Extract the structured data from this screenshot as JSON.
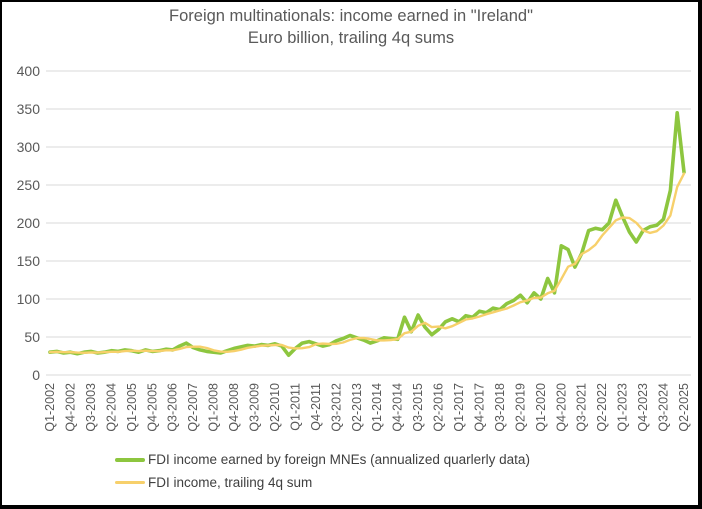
{
  "chart": {
    "title_line1": "Foreign multinationals: income earned in \"Ireland\"",
    "title_line2": "Euro billion, trailing 4q sums"
  },
  "colors": {
    "series_green": "#8dc63f",
    "series_gold": "#f7d06b",
    "gridline": "#d9d9d9",
    "axis_text": "#595959",
    "title_text": "#595959"
  },
  "chart_data": {
    "type": "line",
    "title": "Foreign multinationals: income earned in \"Ireland\"",
    "subtitle": "Euro billion, trailing 4q sums",
    "xlabel": "",
    "ylabel": "",
    "ylim": [
      0,
      400
    ],
    "ytick_step": 50,
    "yticks": [
      0,
      50,
      100,
      150,
      200,
      250,
      300,
      350,
      400
    ],
    "xtick_every": 3,
    "grid": true,
    "legend_position": "bottom-left",
    "categories": [
      "Q1-2002",
      "Q2-2002",
      "Q3-2002",
      "Q4-2002",
      "Q1-2003",
      "Q2-2003",
      "Q3-2003",
      "Q4-2003",
      "Q1-2004",
      "Q2-2004",
      "Q3-2004",
      "Q4-2004",
      "Q1-2005",
      "Q2-2005",
      "Q3-2005",
      "Q4-2005",
      "Q1-2006",
      "Q2-2006",
      "Q3-2006",
      "Q4-2006",
      "Q1-2007",
      "Q2-2007",
      "Q3-2007",
      "Q4-2007",
      "Q1-2008",
      "Q2-2008",
      "Q3-2008",
      "Q4-2008",
      "Q1-2009",
      "Q2-2009",
      "Q3-2009",
      "Q4-2009",
      "Q1-2010",
      "Q2-2010",
      "Q3-2010",
      "Q4-2010",
      "Q1-2011",
      "Q2-2011",
      "Q3-2011",
      "Q4-2011",
      "Q1-2012",
      "Q2-2012",
      "Q3-2012",
      "Q4-2012",
      "Q1-2013",
      "Q2-2013",
      "Q3-2013",
      "Q4-2013",
      "Q1-2014",
      "Q2-2014",
      "Q3-2014",
      "Q4-2014",
      "Q1-2015",
      "Q2-2015",
      "Q3-2015",
      "Q4-2015",
      "Q1-2016",
      "Q2-2016",
      "Q3-2016",
      "Q4-2016",
      "Q1-2017",
      "Q2-2017",
      "Q3-2017",
      "Q4-2017",
      "Q1-2018",
      "Q2-2018",
      "Q3-2018",
      "Q4-2018",
      "Q1-2019",
      "Q2-2019",
      "Q3-2019",
      "Q4-2019",
      "Q1-2020",
      "Q2-2020",
      "Q3-2020",
      "Q4-2020",
      "Q1-2021",
      "Q2-2021",
      "Q3-2021",
      "Q4-2021",
      "Q1-2022",
      "Q2-2022",
      "Q3-2022",
      "Q4-2022",
      "Q1-2023",
      "Q2-2023",
      "Q3-2023",
      "Q4-2023",
      "Q1-2024",
      "Q2-2024",
      "Q3-2024",
      "Q4-2024",
      "Q1-2025",
      "Q2-2025"
    ],
    "series": [
      {
        "name": "FDI income earned by foreign MNEs (annualized quarlerly data)",
        "color": "#8dc63f",
        "stroke_width": 3.6,
        "values": [
          30,
          31,
          29,
          30,
          28,
          30,
          31,
          29,
          30,
          32,
          31,
          33,
          32,
          30,
          33,
          31,
          32,
          34,
          33,
          38,
          42,
          36,
          33,
          31,
          30,
          29,
          32,
          35,
          37,
          39,
          38,
          40,
          39,
          41,
          38,
          26,
          35,
          42,
          44,
          41,
          38,
          40,
          45,
          48,
          52,
          49,
          46,
          42,
          45,
          49,
          48,
          47,
          76,
          57,
          79,
          63,
          53,
          60,
          70,
          74,
          70,
          78,
          76,
          84,
          82,
          88,
          86,
          94,
          98,
          105,
          95,
          108,
          100,
          127,
          108,
          170,
          165,
          142,
          160,
          190,
          193,
          191,
          200,
          230,
          208,
          188,
          175,
          190,
          195,
          197,
          205,
          243,
          345,
          267
        ]
      },
      {
        "name": "FDI income, trailing 4q sum",
        "color": "#f7d06b",
        "stroke_width": 2.4,
        "values": [
          30,
          30.5,
          30,
          30,
          29.5,
          29.25,
          29.75,
          29.5,
          30,
          30.5,
          30.5,
          31.5,
          32,
          31.5,
          32,
          31.5,
          31.5,
          32.5,
          32.5,
          34.25,
          36.75,
          37.25,
          37.25,
          35.5,
          32.5,
          30.75,
          30.5,
          31.5,
          33.25,
          35.75,
          37.25,
          38.5,
          39,
          39.5,
          39.5,
          36,
          35,
          35.25,
          36.75,
          40.5,
          41.25,
          40.75,
          41,
          42.75,
          46.25,
          48.5,
          48.75,
          47.25,
          45.5,
          45.5,
          46,
          47.25,
          55,
          57,
          64.75,
          68.75,
          63,
          63.75,
          61.5,
          64.25,
          68.5,
          73,
          74.5,
          77,
          80,
          82.5,
          85,
          87.5,
          91.5,
          95.75,
          98,
          101.5,
          102,
          107.5,
          110.75,
          126.25,
          142.5,
          146.25,
          159.25,
          164.25,
          171.25,
          183.5,
          193.5,
          203.5,
          207.25,
          206.5,
          200.25,
          190.25,
          187,
          189.25,
          196.75,
          210,
          247.5,
          265
        ]
      }
    ]
  }
}
